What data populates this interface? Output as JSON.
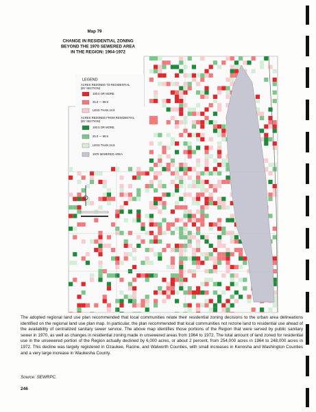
{
  "header": {
    "map_number": "Map 79",
    "title_lines": [
      "CHANGE IN RESIDENTIAL ZONING",
      "BEYOND THE 1970 SEWERED AREA",
      "IN THE REGION: 1964-1972"
    ]
  },
  "legend": {
    "title": "LEGEND",
    "to_heading": [
      "ACRES REZONED TO RESIDENTIAL",
      "(BY SECTION)"
    ],
    "to_items": [
      "100.0 OR MORE",
      "25.0 — 99.9",
      "LESS THAN 24.9"
    ],
    "from_heading": [
      "ACRES REZONED FROM RESIDENTIAL",
      "(BY SECTION)"
    ],
    "from_items": [
      "100.0 OR MORE",
      "25.0 — 99.9",
      "LESS THAN 24.9"
    ],
    "sewered": "1970 SEWERED AREA"
  },
  "body": {
    "paragraph": "The adopted regional land use plan recommended that local communities relate their residential zoning decisions to the urban area delineations identified on the regional land use plan map. In particular, the plan recommended that local communities not rezone land to residential use ahead of the availability of centralized sanitary sewer service. The above map identifies those portions of the Region that were served by public sanitary sewer in 1970, as well as changes in residential zoning made in unsewered areas from 1964 to 1972. The total amount of land zoned for residential use in the unsewered portion of the Region actually declined by 6,000 acres, or about 2 percent, from 254,000 acres in 1964 to 248,000 acres in 1972. This decline was largely registered in Ozaukee, Racine, and Walworth Counties, with small increases in Kenosha and Washington Counties and a very large increase in Waukesha County.",
    "source": "Source: SEWRPC.",
    "page_number": "246"
  }
}
